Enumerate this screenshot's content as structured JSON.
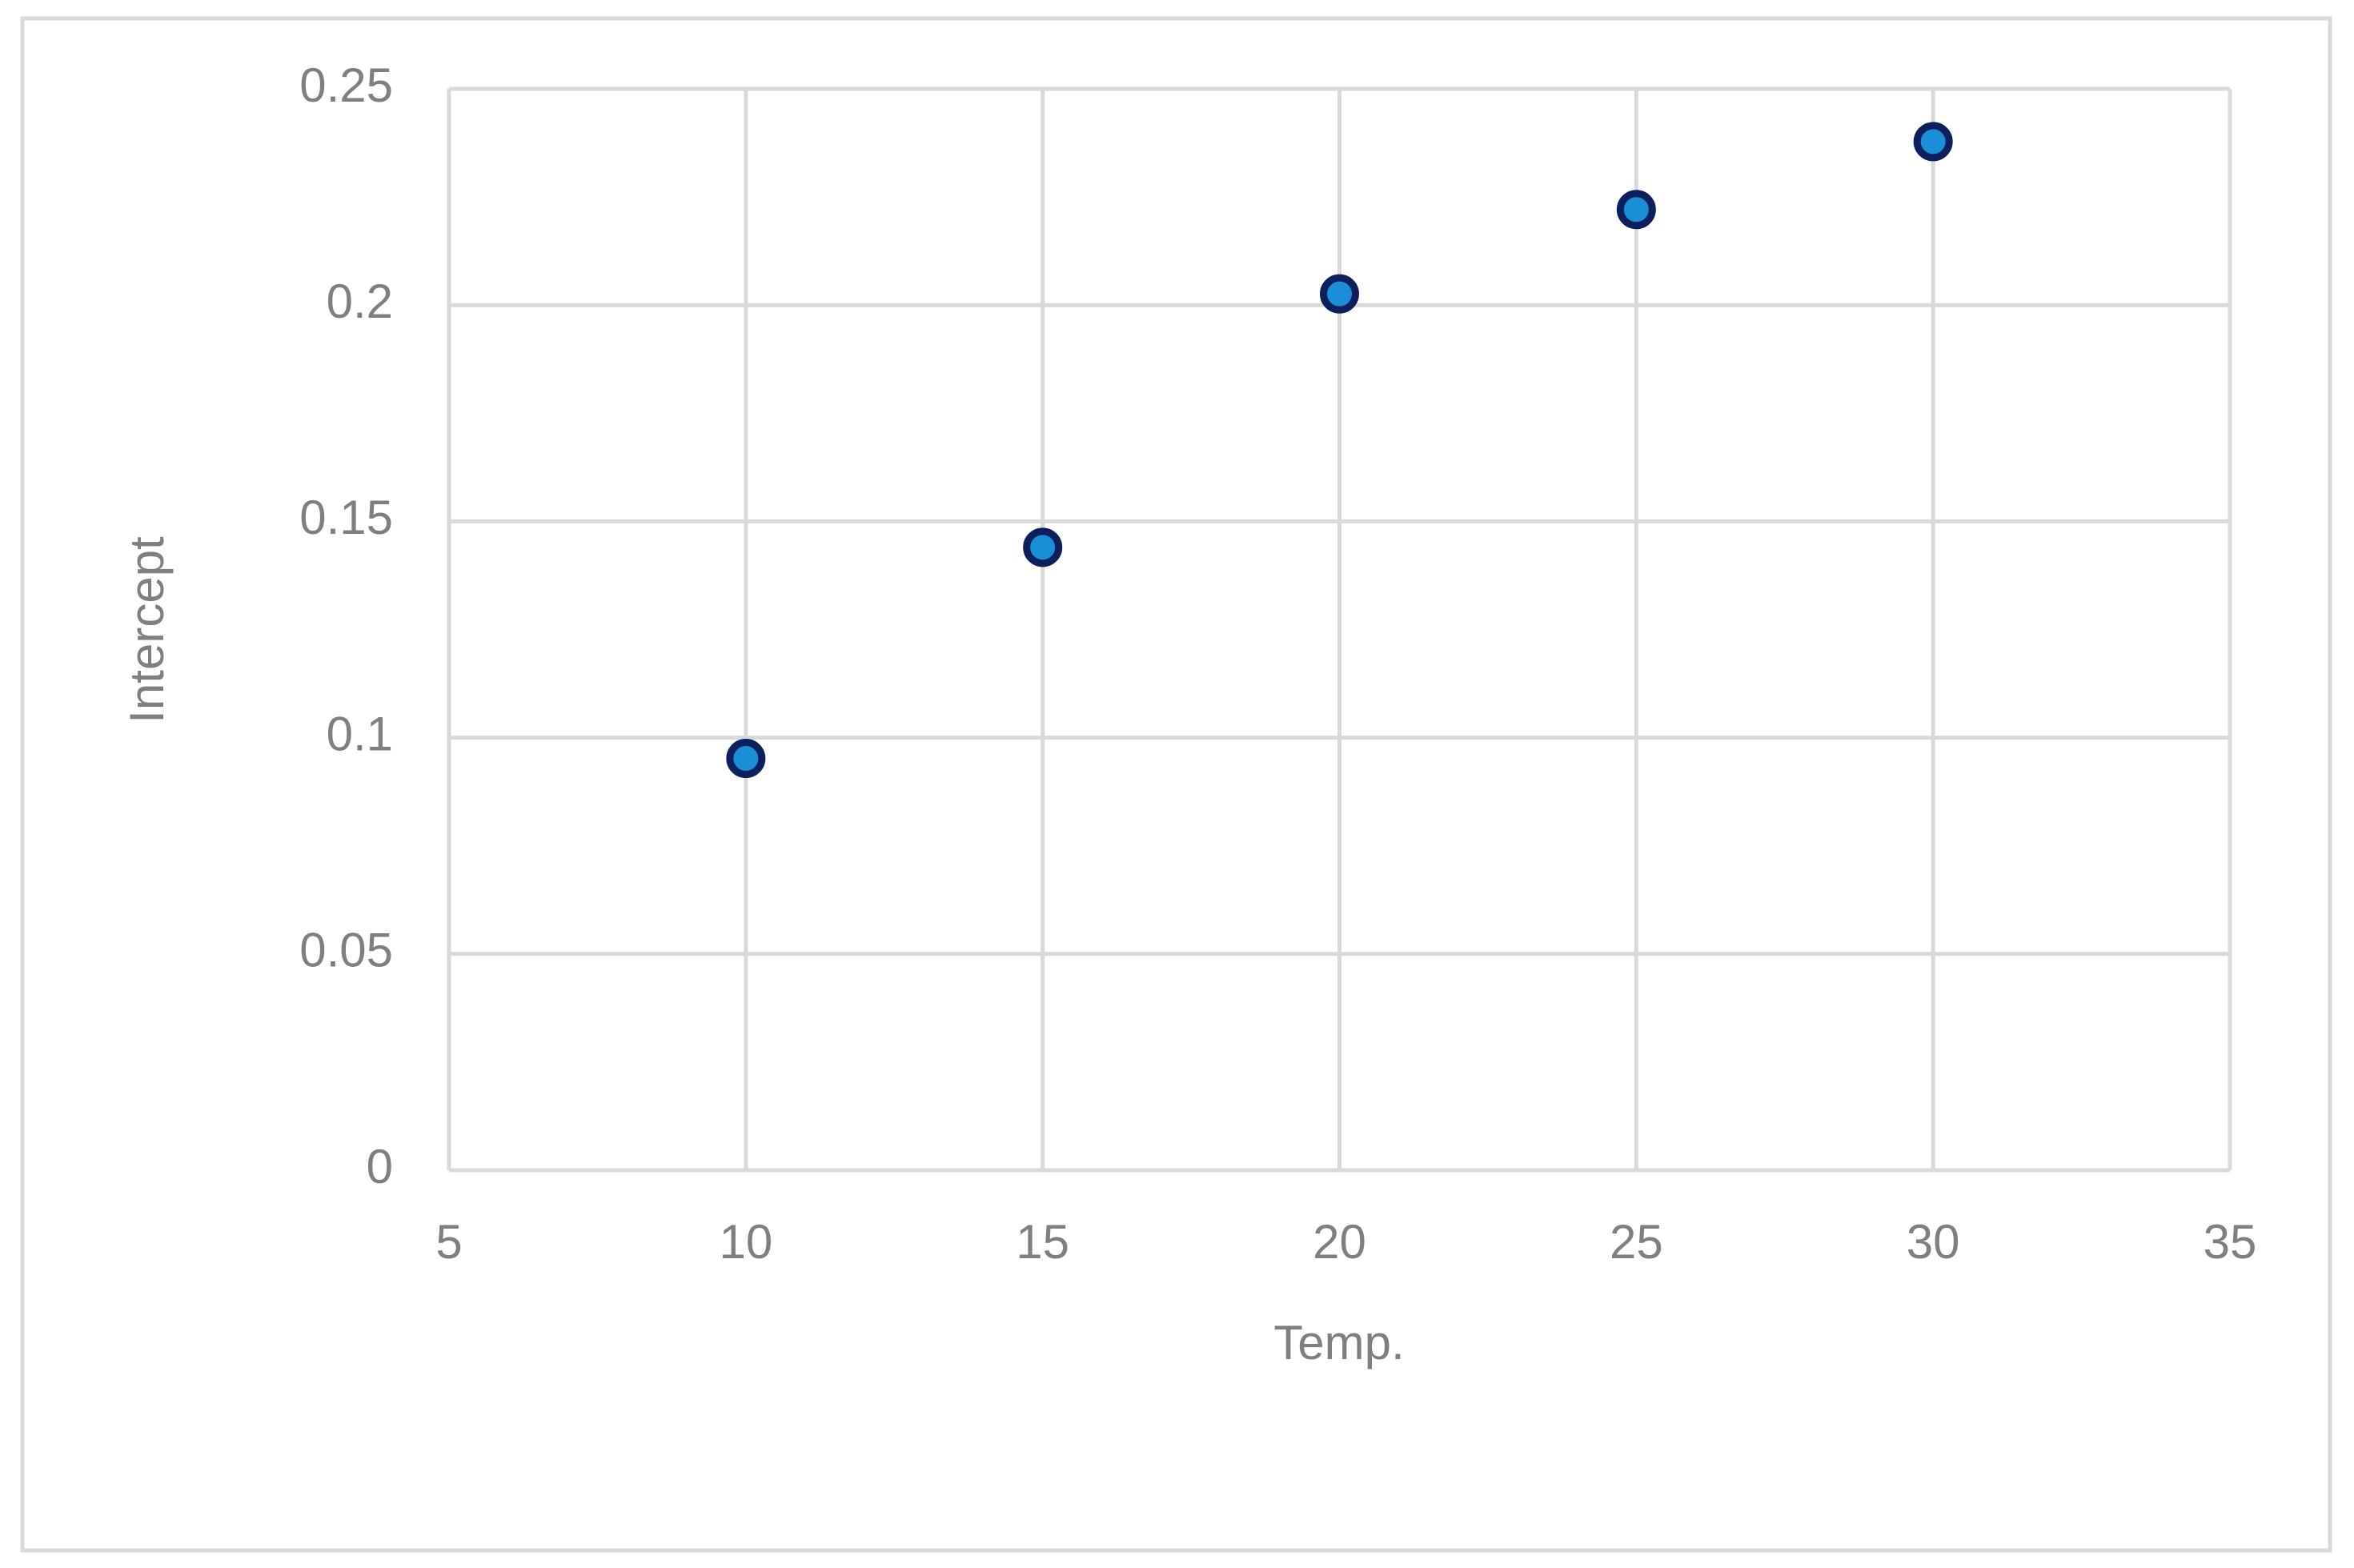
{
  "chart_data": {
    "type": "scatter",
    "x_label": "Temp.",
    "y_label": "Intercept",
    "x": [
      10,
      15,
      20,
      25,
      30
    ],
    "values": [
      0.0952,
      0.144,
      0.2026,
      0.2221,
      0.2378
    ],
    "color": "#1b8fd6",
    "edge_color": "#0d1f5c",
    "xlim": [
      5,
      35
    ],
    "xticks": [
      5,
      10,
      15,
      20,
      25,
      30,
      35
    ],
    "ylim": [
      0,
      0.25
    ],
    "yticks": [
      0,
      0.05,
      0.1,
      0.15,
      0.2,
      0.25
    ],
    "grid": true
  }
}
